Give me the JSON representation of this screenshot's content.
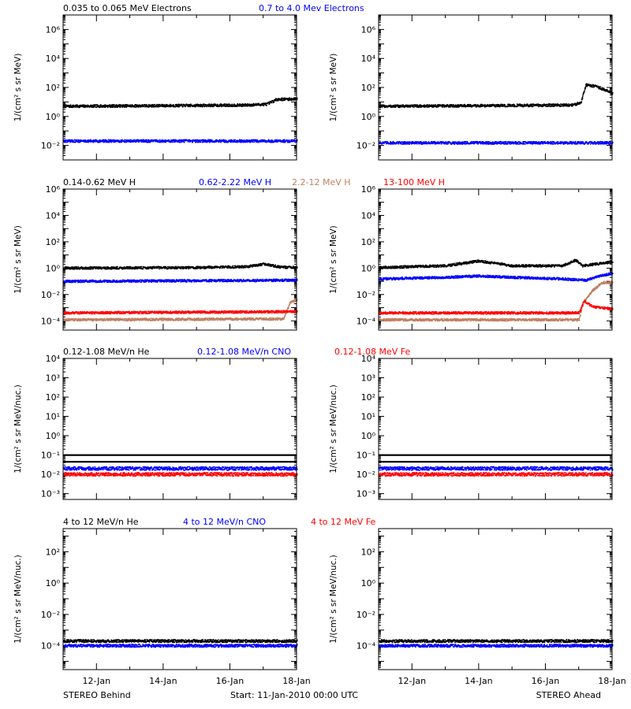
{
  "row_titles": [
    [
      {
        "text": "0.035 to 0.065 MeV Electrons",
        "color": "#000000"
      },
      {
        "text": "0.7 to 4.0 Mev Electrons",
        "color": "#0000ff"
      }
    ],
    [
      {
        "text": "0.14-0.62 MeV H",
        "color": "#000000"
      },
      {
        "text": "0.62-2.22 MeV H",
        "color": "#0000ff"
      },
      {
        "text": "2.2-12 MeV H",
        "color": "#c08060"
      },
      {
        "text": "13-100 MeV H",
        "color": "#ff0000"
      }
    ],
    [
      {
        "text": "0.12-1.08 MeV/n He",
        "color": "#000000"
      },
      {
        "text": "0.12-1.08 MeV/n CNO",
        "color": "#0000ff"
      },
      {
        "text": "0.12-1.08 MeV Fe",
        "color": "#ff0000"
      }
    ],
    [
      {
        "text": "4 to 12 MeV/n He",
        "color": "#000000"
      },
      {
        "text": "4 to 12 MeV/n CNO",
        "color": "#0000ff"
      },
      {
        "text": "4 to 12 MeV Fe",
        "color": "#ff0000"
      }
    ]
  ],
  "footer": {
    "left": "STEREO Behind",
    "center": "Start: 11-Jan-2010 00:00 UTC",
    "right": "STEREO Ahead"
  },
  "x_tick_labels": [
    "12-Jan",
    "14-Jan",
    "16-Jan",
    "18-Jan"
  ],
  "chart_data": [
    {
      "type": "scatter",
      "row": 0,
      "col": 0,
      "ylabel": "1/(cm² s sr MeV)",
      "yscale": "log",
      "ylim": [
        0.001,
        10000000
      ],
      "yticks": [
        0.01,
        1,
        100,
        10000,
        1000000
      ],
      "ytick_labels": [
        "10⁻²",
        "10⁰",
        "10²",
        "10⁴",
        "10⁶"
      ],
      "x_range": [
        "11-Jan-2010 00:00",
        "18-Jan-2010 00:00"
      ],
      "series": [
        {
          "color": "#000000",
          "values": [
            [
              11.0,
              5
            ],
            [
              14.0,
              5.5
            ],
            [
              16.5,
              6
            ],
            [
              17.1,
              7
            ],
            [
              17.4,
              15
            ],
            [
              18.0,
              16
            ]
          ]
        },
        {
          "color": "#0000ff",
          "values": [
            [
              11.0,
              0.02
            ],
            [
              18.0,
              0.02
            ]
          ]
        }
      ]
    },
    {
      "type": "scatter",
      "row": 0,
      "col": 1,
      "ylabel": "1/(cm² s sr MeV)",
      "yscale": "log",
      "ylim": [
        0.001,
        10000000
      ],
      "yticks": [
        0.01,
        1,
        100,
        10000,
        1000000
      ],
      "ytick_labels": [
        "10⁻²",
        "10⁰",
        "10²",
        "10⁴",
        "10⁶"
      ],
      "x_range": [
        "11-Jan-2010 00:00",
        "18-Jan-2010 00:00"
      ],
      "series": [
        {
          "color": "#000000",
          "values": [
            [
              11.0,
              5
            ],
            [
              14.0,
              5.5
            ],
            [
              16.8,
              6
            ],
            [
              17.05,
              9
            ],
            [
              17.2,
              150
            ],
            [
              17.5,
              120
            ],
            [
              18.0,
              40
            ]
          ]
        },
        {
          "color": "#0000ff",
          "values": [
            [
              11.0,
              0.015
            ],
            [
              18.0,
              0.015
            ]
          ]
        }
      ]
    },
    {
      "type": "scatter",
      "row": 1,
      "col": 0,
      "ylabel": "1/(cm² s sr MeV)",
      "yscale": "log",
      "ylim": [
        2e-05,
        1000000
      ],
      "yticks": [
        0.0001,
        0.01,
        1,
        100,
        10000,
        1000000
      ],
      "ytick_labels": [
        "10⁻⁴",
        "10⁻²",
        "10⁰",
        "10²",
        "10⁴",
        "10⁶"
      ],
      "x_range": [
        "11-Jan-2010 00:00",
        "18-Jan-2010 00:00"
      ],
      "series": [
        {
          "color": "#000000",
          "values": [
            [
              11.0,
              1.0
            ],
            [
              15.0,
              1.1
            ],
            [
              16.5,
              1.3
            ],
            [
              17.0,
              2.0
            ],
            [
              17.5,
              1.2
            ],
            [
              18.0,
              1.1
            ]
          ]
        },
        {
          "color": "#0000ff",
          "values": [
            [
              11.0,
              0.1
            ],
            [
              18.0,
              0.12
            ]
          ]
        },
        {
          "color": "#c08060",
          "values": [
            [
              11.0,
              0.00012
            ],
            [
              17.6,
              0.00014
            ],
            [
              17.8,
              0.0025
            ],
            [
              18.0,
              0.004
            ]
          ]
        },
        {
          "color": "#ff0000",
          "values": [
            [
              11.0,
              0.0004
            ],
            [
              18.0,
              0.0005
            ]
          ]
        }
      ]
    },
    {
      "type": "scatter",
      "row": 1,
      "col": 1,
      "ylabel": "1/(cm² s sr MeV)",
      "yscale": "log",
      "ylim": [
        2e-05,
        1000000
      ],
      "yticks": [
        0.0001,
        0.01,
        1,
        100,
        10000,
        1000000
      ],
      "ytick_labels": [
        "10⁻⁴",
        "10⁻²",
        "10⁰",
        "10²",
        "10⁴",
        "10⁶"
      ],
      "x_range": [
        "11-Jan-2010 00:00",
        "18-Jan-2010 00:00"
      ],
      "series": [
        {
          "color": "#000000",
          "values": [
            [
              11.0,
              1.1
            ],
            [
              13.0,
              1.5
            ],
            [
              14.0,
              3.5
            ],
            [
              15.0,
              1.5
            ],
            [
              16.5,
              1.5
            ],
            [
              16.9,
              4
            ],
            [
              17.1,
              1.5
            ],
            [
              18.0,
              3
            ]
          ]
        },
        {
          "color": "#0000ff",
          "values": [
            [
              11.0,
              0.15
            ],
            [
              13.0,
              0.2
            ],
            [
              14.0,
              0.25
            ],
            [
              15.0,
              0.2
            ],
            [
              16.5,
              0.15
            ],
            [
              17.2,
              0.12
            ],
            [
              17.6,
              0.25
            ],
            [
              18.0,
              0.4
            ]
          ]
        },
        {
          "color": "#c08060",
          "values": [
            [
              11.0,
              0.00012
            ],
            [
              17.0,
              0.00012
            ],
            [
              17.1,
              0.002
            ],
            [
              17.4,
              0.02
            ],
            [
              17.7,
              0.08
            ],
            [
              18.0,
              0.08
            ]
          ]
        },
        {
          "color": "#ff0000",
          "values": [
            [
              11.0,
              0.0004
            ],
            [
              17.0,
              0.0004
            ],
            [
              17.15,
              0.003
            ],
            [
              17.4,
              0.0012
            ],
            [
              18.0,
              0.0008
            ]
          ]
        }
      ]
    },
    {
      "type": "scatter",
      "row": 2,
      "col": 0,
      "ylabel": "1/(cm² s sr MeV/nuc.)",
      "yscale": "log",
      "ylim": [
        0.0005,
        10000
      ],
      "yticks": [
        0.001,
        0.01,
        0.1,
        1,
        10,
        100,
        1000,
        10000
      ],
      "ytick_labels": [
        "10⁻³",
        "10⁻²",
        "10⁻¹",
        "10⁰",
        "10¹",
        "10²",
        "10³",
        "10⁴"
      ],
      "x_range": [
        "11-Jan-2010 00:00",
        "18-Jan-2010 00:00"
      ],
      "series": [
        {
          "color": "#000000",
          "values": [
            [
              11.0,
              0.1
            ],
            [
              18.0,
              0.1
            ],
            [
              11.0,
              0.045
            ],
            [
              18.0,
              0.045
            ],
            [
              16.5,
              0.3
            ]
          ]
        },
        {
          "color": "#0000ff",
          "values": [
            [
              11.0,
              0.02
            ],
            [
              18.0,
              0.02
            ]
          ]
        },
        {
          "color": "#ff0000",
          "values": [
            [
              11.0,
              0.01
            ],
            [
              18.0,
              0.01
            ]
          ]
        }
      ]
    },
    {
      "type": "scatter",
      "row": 2,
      "col": 1,
      "ylabel": "1/(cm² s sr MeV/nuc.)",
      "yscale": "log",
      "ylim": [
        0.0005,
        10000
      ],
      "yticks": [
        0.001,
        0.01,
        0.1,
        1,
        10,
        100,
        1000,
        10000
      ],
      "ytick_labels": [
        "10⁻³",
        "10⁻²",
        "10⁻¹",
        "10⁰",
        "10¹",
        "10²",
        "10³",
        "10⁴"
      ],
      "x_range": [
        "11-Jan-2010 00:00",
        "18-Jan-2010 00:00"
      ],
      "series": [
        {
          "color": "#000000",
          "values": [
            [
              11.0,
              0.1
            ],
            [
              18.0,
              0.1
            ],
            [
              11.0,
              0.045
            ],
            [
              18.0,
              0.045
            ],
            [
              17.7,
              0.3
            ]
          ]
        },
        {
          "color": "#0000ff",
          "values": [
            [
              11.0,
              0.02
            ],
            [
              18.0,
              0.02
            ]
          ]
        },
        {
          "color": "#ff0000",
          "values": [
            [
              11.0,
              0.01
            ],
            [
              18.0,
              0.01
            ]
          ]
        }
      ]
    },
    {
      "type": "scatter",
      "row": 3,
      "col": 0,
      "ylabel": "1/(cm² s sr MeV/nuc.)",
      "yscale": "log",
      "ylim": [
        3e-06,
        3000
      ],
      "yticks": [
        0.0001,
        0.01,
        1,
        100
      ],
      "ytick_labels": [
        "10⁻⁴",
        "10⁻²",
        "10⁰",
        "10²"
      ],
      "x_range": [
        "11-Jan-2010 00:00",
        "18-Jan-2010 00:00"
      ],
      "series": [
        {
          "color": "#000000",
          "values": [
            [
              11.0,
              0.0002
            ],
            [
              18.0,
              0.0002
            ]
          ]
        },
        {
          "color": "#0000ff",
          "values": [
            [
              11.0,
              0.0001
            ],
            [
              18.0,
              0.0001
            ]
          ]
        },
        {
          "color": "#ff0000",
          "values": []
        }
      ]
    },
    {
      "type": "scatter",
      "row": 3,
      "col": 1,
      "ylabel": "1/(cm² s sr MeV/nuc.)",
      "yscale": "log",
      "ylim": [
        3e-06,
        3000
      ],
      "yticks": [
        0.0001,
        0.01,
        1,
        100
      ],
      "ytick_labels": [
        "10⁻⁴",
        "10⁻²",
        "10⁰",
        "10²"
      ],
      "x_range": [
        "11-Jan-2010 00:00",
        "18-Jan-2010 00:00"
      ],
      "series": [
        {
          "color": "#000000",
          "values": [
            [
              11.0,
              0.0002
            ],
            [
              18.0,
              0.0002
            ]
          ]
        },
        {
          "color": "#0000ff",
          "values": [
            [
              11.0,
              0.0001
            ],
            [
              18.0,
              0.0001
            ]
          ]
        },
        {
          "color": "#ff0000",
          "values": []
        }
      ]
    }
  ]
}
